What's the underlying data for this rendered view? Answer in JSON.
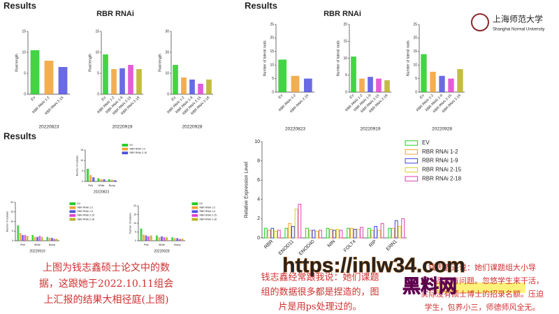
{
  "slides": [
    {
      "heading": "Results",
      "subtitle": "RBR  RNAi"
    },
    {
      "heading": "Results",
      "subtitle": "RBR  RNAi"
    },
    {
      "heading": "Results"
    }
  ],
  "logo": {
    "name": "上海师范大学",
    "name_en": "Shanghai Normal University"
  },
  "charts": [
    {
      "type": "bar",
      "xlabel": "20220823",
      "ylabel": "Root length",
      "categories": [
        "EV",
        "RBR RNAi 1-2",
        "RBR RNAi 2-15"
      ],
      "values": [
        10.5,
        8,
        6.5
      ],
      "colors": [
        "#22cc22",
        "#f0a030",
        "#5050e0"
      ],
      "ylim": [
        0,
        15
      ],
      "yticks": [
        0,
        5,
        10,
        15
      ]
    },
    {
      "type": "bar",
      "xlabel": "20220919",
      "ylabel": "Root length",
      "categories": [
        "EV",
        "RBR RNAi 1-2",
        "RBR RNAi 1-9",
        "RBR RNAi 2-15",
        "RBR RNAi 2-18"
      ],
      "values": [
        9.5,
        6,
        6.2,
        7,
        6
      ],
      "colors": [
        "#22cc22",
        "#f0a030",
        "#5050e0",
        "#e040d0",
        "#b8b020"
      ],
      "ylim": [
        0,
        15
      ],
      "yticks": [
        0,
        5,
        10,
        15
      ]
    },
    {
      "type": "bar",
      "xlabel": "20220928",
      "ylabel": "Root length",
      "categories": [
        "EV",
        "RBR RNAi 1-2",
        "RBR RNAi 1-9",
        "RBR RNAi 2-15",
        "RBR RNAi 2-18"
      ],
      "values": [
        14,
        8,
        7,
        5,
        7
      ],
      "colors": [
        "#22cc22",
        "#f0a030",
        "#5050e0",
        "#e040d0",
        "#b8b020"
      ],
      "ylim": [
        0,
        30
      ],
      "yticks": [
        0,
        10,
        20,
        30
      ]
    },
    {
      "type": "bar",
      "xlabel": "20220823",
      "ylabel": "Number of lateral roots",
      "categories": [
        "EV",
        "RBR RNAi 1-2",
        "RBR RNAi 2-15"
      ],
      "values": [
        12,
        6,
        5
      ],
      "colors": [
        "#22cc22",
        "#f0a030",
        "#5050e0"
      ],
      "ylim": [
        0,
        25
      ],
      "yticks": [
        0,
        5,
        10,
        15,
        20,
        25
      ]
    },
    {
      "type": "bar",
      "xlabel": "20220919",
      "ylabel": "Number of lateral roots",
      "categories": [
        "EV",
        "RBR RNAi 1-2",
        "RBR RNAi 1-9",
        "RBR RNAi 2-15",
        "RBR RNAi 2-18"
      ],
      "values": [
        10.5,
        4,
        4.5,
        4,
        3.5
      ],
      "colors": [
        "#22cc22",
        "#f0a030",
        "#5050e0",
        "#e040d0",
        "#b8b020"
      ],
      "ylim": [
        0,
        20
      ],
      "yticks": [
        0,
        5,
        10,
        15,
        20
      ]
    },
    {
      "type": "bar",
      "xlabel": "20220928",
      "ylabel": "Number of lateral roots",
      "categories": [
        "EV",
        "RBR RNAi 1-2",
        "RBR RNAi 1-9",
        "RBR RNAi 2-15",
        "RBR RNAi 2-18"
      ],
      "values": [
        14,
        7.5,
        6,
        5,
        8.5
      ],
      "colors": [
        "#22cc22",
        "#f0a030",
        "#5050e0",
        "#e040d0",
        "#b8b020"
      ],
      "ylim": [
        0,
        25
      ],
      "yticks": [
        0,
        5,
        10,
        15,
        20,
        25
      ]
    },
    {
      "type": "grouped",
      "xlabel": "20220823",
      "ylabel": "Number of nodules",
      "categories": [
        "Pink",
        "White",
        "Bump"
      ],
      "series": [
        {
          "name": "EV",
          "color": "#22cc22",
          "values": [
            6,
            1.5,
            1
          ]
        },
        {
          "name": "RBR RNAi 1-2",
          "color": "#f0a030",
          "values": [
            3,
            1,
            0.8
          ]
        },
        {
          "name": "RBR RNAi 2-15",
          "color": "#5050e0",
          "values": [
            2,
            1,
            0.6
          ]
        }
      ],
      "ylim": [
        0,
        15
      ],
      "yticks": [
        0,
        5,
        10,
        15
      ],
      "legend": true
    },
    {
      "type": "grouped",
      "xlabel": "20220919",
      "ylabel": "Number of nodules",
      "categories": [
        "Pink",
        "White",
        "Bump"
      ],
      "series": [
        {
          "name": "EV",
          "color": "#22cc22",
          "values": [
            8,
            3,
            2
          ]
        },
        {
          "name": "RBR RNAi 1-2",
          "color": "#f0a030",
          "values": [
            4,
            2,
            1.5
          ]
        },
        {
          "name": "RBR RNAi 1-9",
          "color": "#5050e0",
          "values": [
            3,
            2,
            1.5
          ]
        },
        {
          "name": "RBR RNAi 2-15",
          "color": "#e040d0",
          "values": [
            3,
            2.5,
            1
          ]
        },
        {
          "name": "RBR RNAi 2-18",
          "color": "#b8b020",
          "values": [
            2.5,
            2,
            1
          ]
        }
      ],
      "ylim": [
        0,
        20
      ],
      "yticks": [
        0,
        5,
        10,
        15,
        20
      ],
      "legend": true
    },
    {
      "type": "grouped",
      "xlabel": "20220928",
      "ylabel": "Number of nodules",
      "categories": [
        "Pink",
        "White",
        "Bump"
      ],
      "series": [
        {
          "name": "EV",
          "color": "#22cc22",
          "values": [
            7,
            3,
            2
          ]
        },
        {
          "name": "RBR RNAi 1-2",
          "color": "#f0a030",
          "values": [
            3.5,
            2,
            1.5
          ]
        },
        {
          "name": "RBR RNAi 1-9",
          "color": "#5050e0",
          "values": [
            3,
            2.5,
            1.5
          ]
        },
        {
          "name": "RBR RNAi 2-15",
          "color": "#e040d0",
          "values": [
            2.5,
            2,
            1
          ]
        },
        {
          "name": "RBR RNAi 2-18",
          "color": "#b8b020",
          "values": [
            3,
            2,
            1.2
          ]
        }
      ],
      "ylim": [
        0,
        20
      ],
      "yticks": [
        0,
        5,
        10,
        15,
        20
      ],
      "legend": true
    },
    {
      "type": "grouped",
      "outline": true,
      "ylabel": "Relative Expression Level",
      "categories": [
        "RBR",
        "ENOD11",
        "ENOD40",
        "NIN",
        "FOLT4",
        "RIP",
        "ERN1"
      ],
      "series": [
        {
          "name": "EV",
          "color": "#22cc22",
          "values": [
            1,
            1,
            1,
            1,
            1,
            1,
            1
          ]
        },
        {
          "name": "RBR  RNAi  1-2",
          "color": "#f0a030",
          "values": [
            0.8,
            1.5,
            0.8,
            0.9,
            1,
            0.8,
            1
          ]
        },
        {
          "name": "RBR  RNAi  1-9",
          "color": "#4040e0",
          "values": [
            1,
            1.2,
            0.8,
            0.8,
            0.9,
            1.2,
            1.8
          ]
        },
        {
          "name": "RBR  RNAi  2-15",
          "color": "#d8d020",
          "values": [
            0.7,
            3,
            0.7,
            0.9,
            0.9,
            0.8,
            1.2
          ]
        },
        {
          "name": "RBR  RNAi  2-18",
          "color": "#e040b0",
          "values": [
            0.8,
            3.5,
            0.8,
            0.8,
            1.1,
            1.5,
            2
          ]
        }
      ],
      "ylim": [
        0,
        10
      ],
      "yticks": [
        0,
        2,
        4,
        6,
        8,
        10
      ],
      "legend": true
    }
  ],
  "notes": {
    "left": [
      "上图为钱志鑫硕士论文中的数",
      "据，这跟她于2022.10.11组会",
      "上汇报的结果大相径庭(上图)"
    ],
    "middle": [
      "钱志鑫经常跟我说：她们课题",
      "组的数据很多都是捏造的，图",
      "片是用ps处理过的。"
    ],
    "right": [
      "钱志鑫还说：她们课题组大小导",
      "师人品都有问题。忽悠学生来干活，",
      "实际没有硕士博士的招录名额。压迫",
      "学生，包养小三，师德师风全无。"
    ]
  },
  "watermark": [
    "https://inlw34.com",
    "黑料网"
  ]
}
